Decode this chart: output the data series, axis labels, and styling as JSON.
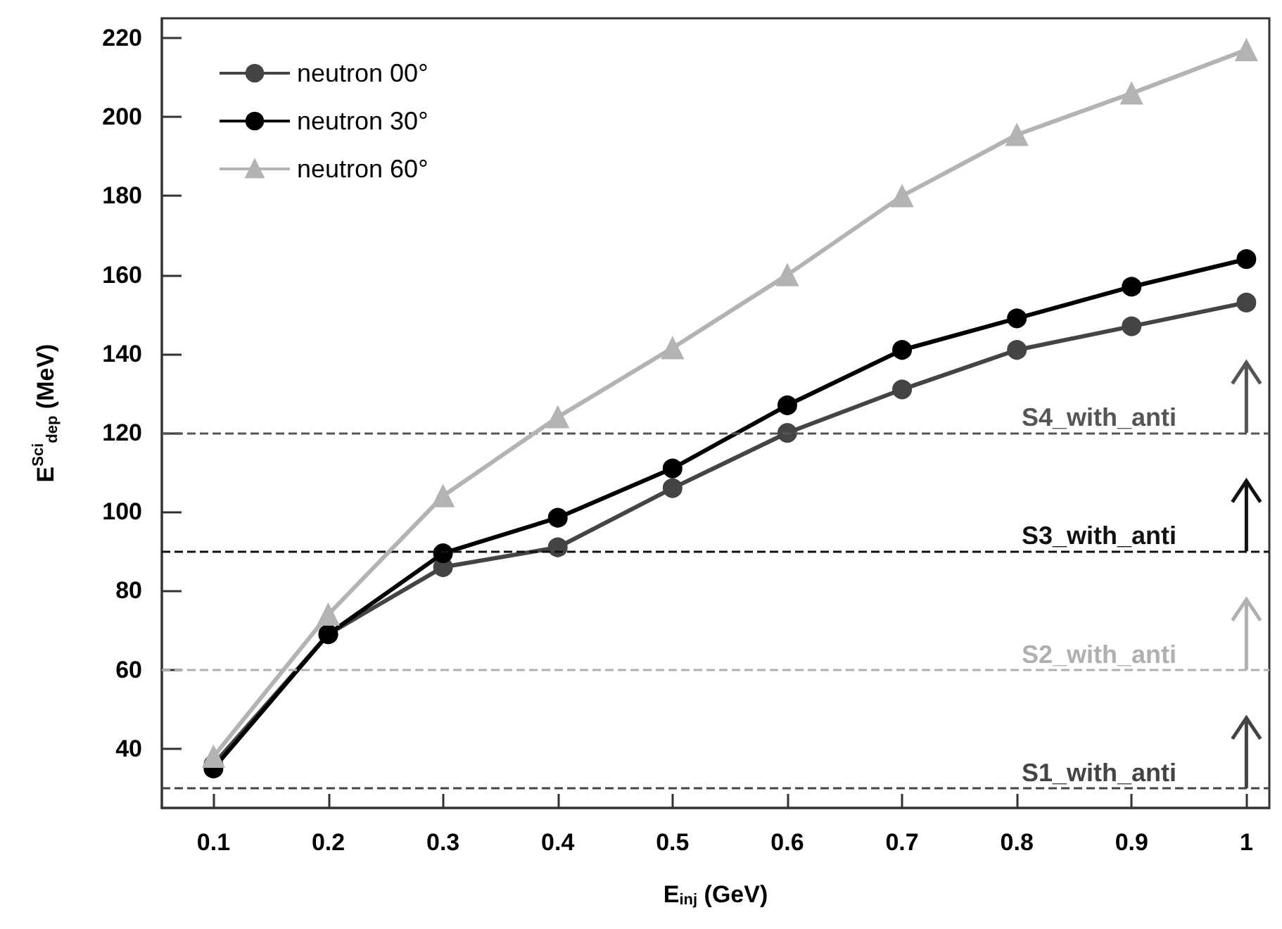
{
  "chart_data": {
    "type": "line",
    "xlabel": "E$_{inj}$ (GeV)",
    "ylabel": "E$^{Sci}$$_{dep}$ (MeV)",
    "x": [
      0.1,
      0.2,
      0.3,
      0.4,
      0.5,
      0.6,
      0.7,
      0.8,
      0.9,
      1
    ],
    "series": [
      {
        "name": "neutron 00°",
        "color": "#444444",
        "marker": "circle",
        "values": [
          36,
          69,
          86,
          91,
          106,
          120,
          131,
          141,
          147,
          153
        ]
      },
      {
        "name": "neutron 30°",
        "color": "#000000",
        "marker": "circle",
        "values": [
          35,
          69,
          89.5,
          98.5,
          111,
          127,
          141,
          149,
          157,
          164
        ]
      },
      {
        "name": "neutron 60°",
        "color": "#b3b3b3",
        "marker": "triangle",
        "values": [
          38,
          74,
          104,
          124,
          141.5,
          160,
          180,
          195.5,
          206,
          217
        ]
      }
    ],
    "xlim": [
      0.055,
      1.02
    ],
    "xticks": [
      0.1,
      0.2,
      0.3,
      0.4,
      0.5,
      0.6,
      0.7,
      0.8,
      0.9,
      1
    ],
    "ylim": [
      25,
      225
    ],
    "yticks": [
      40,
      60,
      80,
      100,
      120,
      140,
      160,
      180,
      200,
      220
    ],
    "ref_lines": [
      {
        "axis": "y",
        "value": 30,
        "label": "S1_with_anti",
        "color": "#444444",
        "line_style": "dashed"
      },
      {
        "axis": "y",
        "value": 60,
        "label": "S2_with_anti",
        "color": "#b0b0b0",
        "line_style": "dashed"
      },
      {
        "axis": "y",
        "value": 90,
        "label": "S3_with_anti",
        "color": "#111111",
        "line_style": "dashed"
      },
      {
        "axis": "y",
        "value": 120,
        "label": "S4_with_anti",
        "color": "#555555",
        "line_style": "dashed"
      }
    ],
    "grid": false,
    "legend": "top left",
    "line_style": "solid"
  }
}
